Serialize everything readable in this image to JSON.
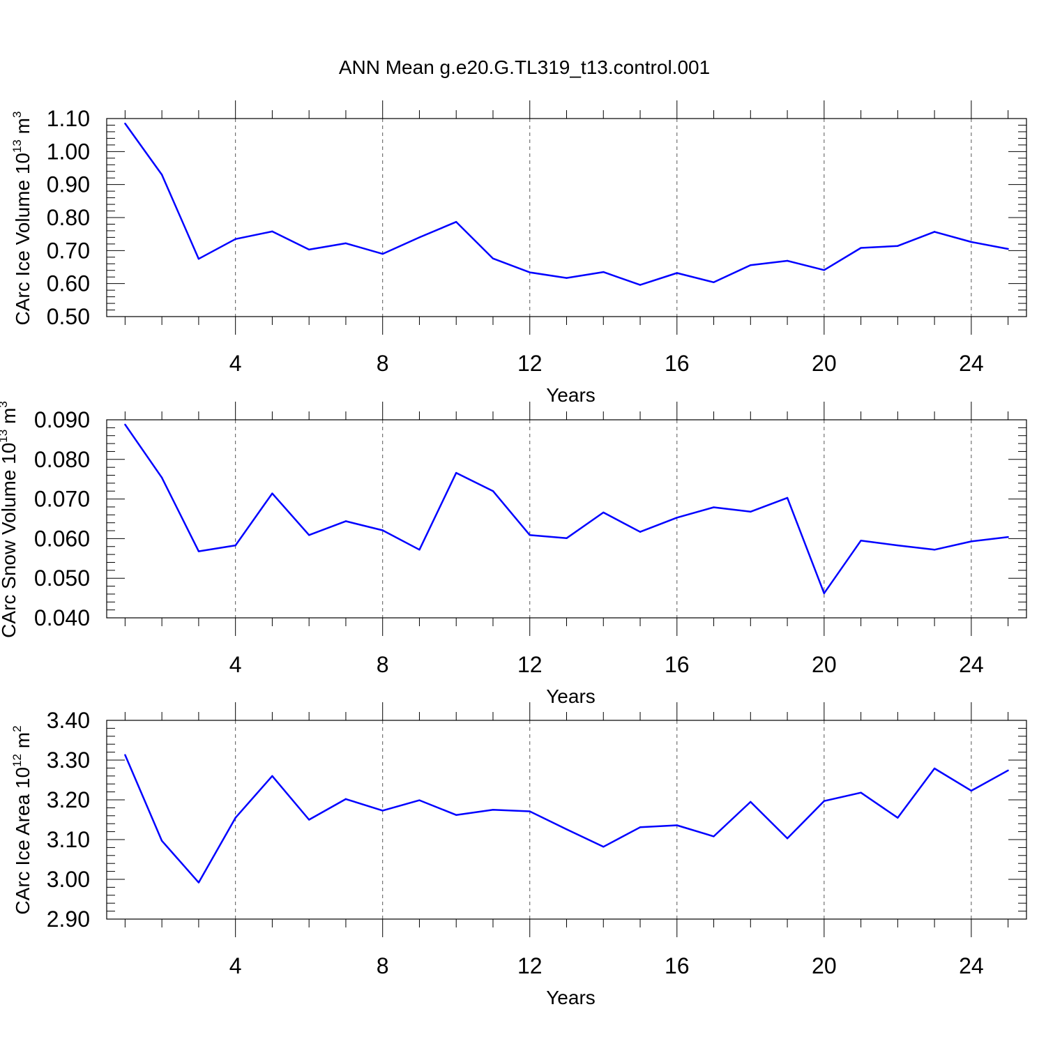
{
  "title": "ANN Mean g.e20.G.TL319_t13.control.001",
  "line_color": "#0000ff",
  "chart_data": [
    {
      "type": "line",
      "name": "ice-volume",
      "ylabel": {
        "text": "CArc Ice Volume 10",
        "exp": "13",
        "unit": " m",
        "unit_exp": "3"
      },
      "xlabel": "Years",
      "xlim": [
        1,
        25
      ],
      "ylim": [
        0.5,
        1.1
      ],
      "xticks": [
        4,
        8,
        12,
        16,
        20,
        24
      ],
      "yticks": [
        0.5,
        0.6,
        0.7,
        0.8,
        0.9,
        1.0,
        1.1
      ],
      "ytick_labels": [
        "0.50",
        "0.60",
        "0.70",
        "0.80",
        "0.90",
        "1.00",
        "1.10"
      ],
      "x": [
        1,
        2,
        3,
        4,
        5,
        6,
        7,
        8,
        9,
        10,
        11,
        12,
        13,
        14,
        15,
        16,
        17,
        18,
        19,
        20,
        21,
        22,
        23,
        24,
        25
      ],
      "values": [
        1.085,
        0.93,
        0.675,
        0.735,
        0.758,
        0.703,
        0.722,
        0.69,
        0.74,
        0.787,
        0.676,
        0.634,
        0.617,
        0.635,
        0.596,
        0.632,
        0.604,
        0.656,
        0.669,
        0.641,
        0.708,
        0.714,
        0.757,
        0.726,
        0.705
      ]
    },
    {
      "type": "line",
      "name": "snow-volume",
      "ylabel": {
        "text": "CArc Snow Volume 10",
        "exp": "13",
        "unit": " m",
        "unit_exp": "3"
      },
      "xlabel": "Years",
      "xlim": [
        1,
        25
      ],
      "ylim": [
        0.04,
        0.09
      ],
      "xticks": [
        4,
        8,
        12,
        16,
        20,
        24
      ],
      "yticks": [
        0.04,
        0.05,
        0.06,
        0.07,
        0.08,
        0.09
      ],
      "ytick_labels": [
        "0.040",
        "0.050",
        "0.060",
        "0.070",
        "0.080",
        "0.090"
      ],
      "x": [
        1,
        2,
        3,
        4,
        5,
        6,
        7,
        8,
        9,
        10,
        11,
        12,
        13,
        14,
        15,
        16,
        17,
        18,
        19,
        20,
        21,
        22,
        23,
        24,
        25
      ],
      "values": [
        0.0888,
        0.0754,
        0.0568,
        0.0583,
        0.0714,
        0.0609,
        0.0644,
        0.0621,
        0.0572,
        0.0766,
        0.072,
        0.0609,
        0.0601,
        0.0666,
        0.0617,
        0.0653,
        0.0679,
        0.0668,
        0.0703,
        0.0462,
        0.0595,
        0.0583,
        0.0572,
        0.0593,
        0.0604
      ]
    },
    {
      "type": "line",
      "name": "ice-area",
      "ylabel": {
        "text": "CArc Ice Area 10",
        "exp": "12",
        "unit": " m",
        "unit_exp": "2"
      },
      "xlabel": "Years",
      "xlim": [
        1,
        25
      ],
      "ylim": [
        2.9,
        3.4
      ],
      "xticks": [
        4,
        8,
        12,
        16,
        20,
        24
      ],
      "yticks": [
        2.9,
        3.0,
        3.1,
        3.2,
        3.3,
        3.4
      ],
      "ytick_labels": [
        "2.90",
        "3.00",
        "3.10",
        "3.20",
        "3.30",
        "3.40"
      ],
      "x": [
        1,
        2,
        3,
        4,
        5,
        6,
        7,
        8,
        9,
        10,
        11,
        12,
        13,
        14,
        15,
        16,
        17,
        18,
        19,
        20,
        21,
        22,
        23,
        24,
        25
      ],
      "values": [
        3.313,
        3.097,
        2.992,
        3.155,
        3.26,
        3.15,
        3.202,
        3.173,
        3.199,
        3.162,
        3.175,
        3.171,
        3.126,
        3.082,
        3.131,
        3.136,
        3.108,
        3.195,
        3.103,
        3.197,
        3.218,
        3.155,
        3.279,
        3.223,
        3.274
      ]
    }
  ]
}
